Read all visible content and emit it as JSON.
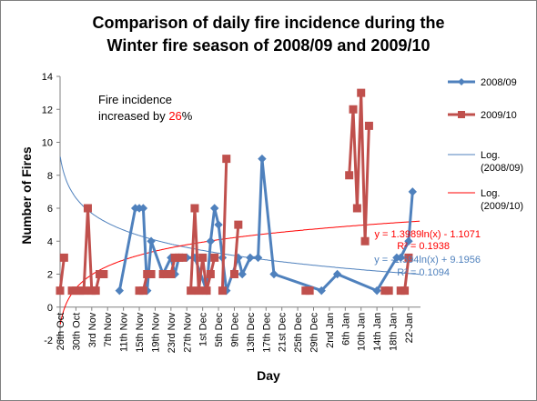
{
  "chart_data": {
    "type": "line",
    "title_lines": [
      "Comparison of daily fire incidence during the",
      "Winter fire season of 2008/09 and 2009/10"
    ],
    "xlabel": "Day",
    "ylabel": "Number of  Fires",
    "ylim": [
      -2,
      14
    ],
    "yticks": [
      "-2",
      "0",
      "2",
      "4",
      "6",
      "8",
      "10",
      "12",
      "14"
    ],
    "grid": false,
    "legend_position": "right",
    "x_range_days": [
      0,
      91
    ],
    "x_ticks": [
      {
        "day": 0,
        "label": "26th Oct"
      },
      {
        "day": 4,
        "label": "30th Oct"
      },
      {
        "day": 8,
        "label": "3rd Nov"
      },
      {
        "day": 12,
        "label": "7th Nov"
      },
      {
        "day": 16,
        "label": "11th Nov"
      },
      {
        "day": 20,
        "label": "15th Nov"
      },
      {
        "day": 24,
        "label": "19th Nov"
      },
      {
        "day": 28,
        "label": "23rd Nov"
      },
      {
        "day": 32,
        "label": "27th Nov"
      },
      {
        "day": 36,
        "label": "1st Dec"
      },
      {
        "day": 40,
        "label": "5th Dec"
      },
      {
        "day": 44,
        "label": "9th Dec"
      },
      {
        "day": 48,
        "label": "13th Dec"
      },
      {
        "day": 52,
        "label": "17th Dec"
      },
      {
        "day": 56,
        "label": "21st Dec"
      },
      {
        "day": 60,
        "label": "25th Dec"
      },
      {
        "day": 64,
        "label": "29th Dec"
      },
      {
        "day": 68,
        "label": "2nd Jan"
      },
      {
        "day": 72,
        "label": "6th Jan"
      },
      {
        "day": 76,
        "label": "10th Jan"
      },
      {
        "day": 80,
        "label": "14th Jan"
      },
      {
        "day": 84,
        "label": "18th Jan"
      },
      {
        "day": 88,
        "label": "22-Jan"
      }
    ],
    "series": [
      {
        "name": "2008/09",
        "color": "#4f81bd",
        "marker": "diamond",
        "points": [
          [
            15,
            1
          ],
          [
            19,
            6
          ],
          [
            20,
            6
          ],
          [
            21,
            6
          ],
          [
            22,
            1
          ],
          [
            23,
            4
          ],
          [
            26,
            2
          ],
          [
            28,
            3
          ],
          [
            29,
            2
          ],
          [
            30,
            3
          ],
          [
            31,
            3
          ],
          [
            32,
            3
          ],
          [
            34,
            3
          ],
          [
            37,
            1
          ],
          [
            38,
            4
          ],
          [
            39,
            6
          ],
          [
            40,
            5
          ],
          [
            41,
            3
          ],
          [
            42,
            1
          ],
          [
            45,
            3
          ],
          [
            46,
            2
          ],
          [
            48,
            3
          ],
          [
            50,
            3
          ],
          [
            51,
            9
          ],
          [
            54,
            2
          ],
          [
            66,
            1
          ],
          [
            70,
            2
          ],
          [
            80,
            1
          ],
          [
            85,
            3
          ],
          [
            86,
            3
          ],
          [
            88,
            4
          ],
          [
            89,
            7
          ]
        ]
      },
      {
        "name": "2009/10",
        "color": "#c0504d",
        "marker": "square",
        "points": [
          [
            0,
            1
          ],
          [
            1,
            3
          ],
          [
            2,
            null
          ],
          [
            3,
            1
          ],
          [
            4,
            1
          ],
          [
            5,
            1
          ],
          [
            6,
            1
          ],
          [
            7,
            6
          ],
          [
            8,
            1
          ],
          [
            9,
            1
          ],
          [
            10,
            2
          ],
          [
            11,
            2
          ],
          [
            12,
            null
          ],
          [
            20,
            1
          ],
          [
            21,
            1
          ],
          [
            22,
            2
          ],
          [
            23,
            2
          ],
          [
            24,
            null
          ],
          [
            26,
            2
          ],
          [
            27,
            2
          ],
          [
            28,
            2
          ],
          [
            29,
            3
          ],
          [
            30,
            3
          ],
          [
            31,
            3
          ],
          [
            32,
            null
          ],
          [
            33,
            1
          ],
          [
            34,
            6
          ],
          [
            35,
            1
          ],
          [
            36,
            3
          ],
          [
            37,
            1
          ],
          [
            38,
            2
          ],
          [
            39,
            3
          ],
          [
            40,
            null
          ],
          [
            41,
            1
          ],
          [
            42,
            9
          ],
          [
            43,
            null
          ],
          [
            44,
            2
          ],
          [
            45,
            5
          ],
          [
            46,
            null
          ],
          [
            62,
            1
          ],
          [
            63,
            1
          ],
          [
            64,
            null
          ],
          [
            73,
            8
          ],
          [
            74,
            12
          ],
          [
            75,
            6
          ],
          [
            76,
            13
          ],
          [
            77,
            4
          ],
          [
            78,
            11
          ],
          [
            79,
            null
          ],
          [
            82,
            1
          ],
          [
            83,
            1
          ],
          [
            84,
            null
          ],
          [
            86,
            1
          ],
          [
            87,
            1
          ],
          [
            88,
            3
          ]
        ]
      }
    ],
    "trendlines": [
      {
        "name": "Log. (2008/09)",
        "legend_lines": [
          "Log.",
          "(2008/09)"
        ],
        "color": "#4f81bd",
        "a": -1.594,
        "b": 9.1956,
        "x_start": 0,
        "x_end": 91,
        "equation": "y = -1.594ln(x) + 9.1956",
        "r2": "R² = 0.1094"
      },
      {
        "name": "Log. (2009/10)",
        "legend_lines": [
          "Log.",
          "(2009/10)"
        ],
        "color": "#ff0000",
        "a": 1.3989,
        "b": -1.1071,
        "x_start": 0,
        "x_end": 91,
        "equation": "y = 1.3989ln(x) - 1.1071",
        "r2": "R² = 0.1938"
      }
    ],
    "annotation": {
      "line1": "Fire incidence",
      "line2_prefix": "increased by  ",
      "line2_value": "26",
      "line2_suffix": "%",
      "value_color": "#ff0000"
    }
  }
}
